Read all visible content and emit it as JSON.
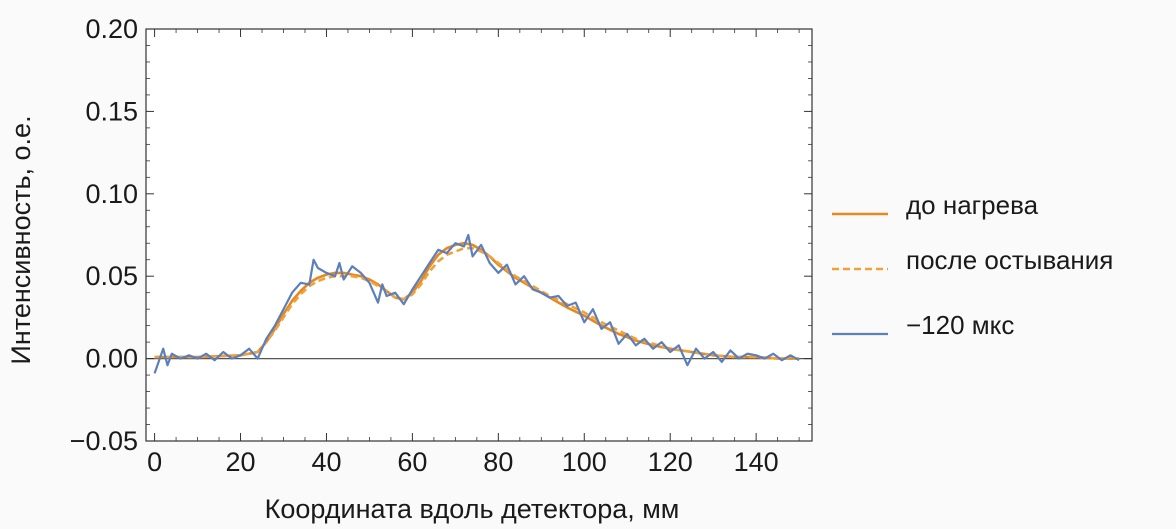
{
  "chart_data": {
    "type": "line",
    "title": "",
    "xlabel": "Координата вдоль детектора, мм",
    "ylabel": "Интенсивность, о.е.",
    "xlim": [
      -2,
      153
    ],
    "ylim": [
      -0.05,
      0.2
    ],
    "x_ticks": [
      0,
      20,
      40,
      60,
      80,
      100,
      120,
      140
    ],
    "x_tick_labels": [
      "0",
      "20",
      "40",
      "60",
      "80",
      "100",
      "120",
      "140"
    ],
    "y_ticks": [
      -0.05,
      0.0,
      0.05,
      0.1,
      0.15,
      0.2
    ],
    "y_tick_labels": [
      "−0.05",
      "0.00",
      "0.05",
      "0.10",
      "0.15",
      "0.20"
    ],
    "zero_line": true,
    "grid": false,
    "legend_position": "right",
    "series": [
      {
        "name": "до нагрева",
        "color": "#e8871e",
        "dash": "solid",
        "x": [
          0,
          10,
          20,
          24,
          26,
          28,
          30,
          32,
          34,
          36,
          38,
          40,
          42,
          44,
          46,
          48,
          50,
          52,
          54,
          56,
          58,
          60,
          62,
          64,
          66,
          68,
          70,
          72,
          74,
          76,
          78,
          80,
          84,
          88,
          92,
          96,
          100,
          104,
          108,
          112,
          116,
          120,
          125,
          130,
          135,
          140,
          145,
          150
        ],
        "y": [
          0.001,
          0.001,
          0.002,
          0.004,
          0.01,
          0.018,
          0.027,
          0.035,
          0.041,
          0.046,
          0.049,
          0.051,
          0.052,
          0.052,
          0.051,
          0.05,
          0.048,
          0.045,
          0.041,
          0.037,
          0.036,
          0.04,
          0.047,
          0.056,
          0.063,
          0.067,
          0.069,
          0.07,
          0.069,
          0.066,
          0.062,
          0.057,
          0.049,
          0.043,
          0.037,
          0.031,
          0.026,
          0.02,
          0.015,
          0.011,
          0.008,
          0.006,
          0.004,
          0.002,
          0.001,
          0.001,
          0.0,
          0.0
        ]
      },
      {
        "name": "после остывания",
        "color": "#f0a23a",
        "dash": "dashed",
        "x": [
          0,
          10,
          20,
          24,
          26,
          28,
          30,
          32,
          34,
          36,
          38,
          40,
          42,
          44,
          46,
          48,
          50,
          52,
          54,
          56,
          58,
          60,
          62,
          64,
          66,
          68,
          70,
          72,
          74,
          76,
          78,
          80,
          84,
          88,
          92,
          96,
          100,
          104,
          108,
          112,
          116,
          120,
          125,
          130,
          135,
          140,
          145,
          150
        ],
        "y": [
          0.001,
          0.001,
          0.002,
          0.004,
          0.01,
          0.017,
          0.025,
          0.033,
          0.039,
          0.044,
          0.047,
          0.049,
          0.05,
          0.05,
          0.05,
          0.049,
          0.047,
          0.044,
          0.041,
          0.037,
          0.036,
          0.039,
          0.045,
          0.053,
          0.059,
          0.063,
          0.065,
          0.067,
          0.067,
          0.065,
          0.062,
          0.058,
          0.05,
          0.044,
          0.038,
          0.033,
          0.028,
          0.022,
          0.017,
          0.012,
          0.009,
          0.006,
          0.004,
          0.002,
          0.001,
          0.001,
          0.0,
          0.0
        ]
      },
      {
        "name": "−120 мкс",
        "color": "#5b7fbd",
        "dash": "solid",
        "x": [
          0,
          2,
          3,
          4,
          6,
          8,
          10,
          12,
          14,
          16,
          18,
          20,
          22,
          24,
          26,
          28,
          30,
          32,
          34,
          36,
          37,
          38,
          40,
          42,
          43,
          44,
          46,
          48,
          50,
          52,
          53,
          54,
          56,
          58,
          60,
          62,
          64,
          66,
          68,
          70,
          72,
          73,
          74,
          76,
          78,
          80,
          82,
          84,
          86,
          88,
          90,
          92,
          94,
          96,
          98,
          100,
          102,
          104,
          106,
          108,
          110,
          112,
          114,
          116,
          118,
          120,
          122,
          124,
          126,
          128,
          130,
          132,
          134,
          136,
          138,
          140,
          142,
          144,
          146,
          148,
          150
        ],
        "y": [
          -0.009,
          0.006,
          -0.004,
          0.003,
          0.0,
          0.002,
          0.0,
          0.003,
          -0.001,
          0.004,
          0.0,
          0.002,
          0.006,
          0.0,
          0.012,
          0.02,
          0.03,
          0.04,
          0.046,
          0.045,
          0.06,
          0.055,
          0.052,
          0.05,
          0.058,
          0.048,
          0.056,
          0.052,
          0.046,
          0.034,
          0.045,
          0.038,
          0.04,
          0.033,
          0.042,
          0.05,
          0.058,
          0.066,
          0.064,
          0.07,
          0.068,
          0.075,
          0.062,
          0.069,
          0.058,
          0.052,
          0.057,
          0.045,
          0.05,
          0.042,
          0.04,
          0.037,
          0.038,
          0.032,
          0.034,
          0.022,
          0.03,
          0.018,
          0.022,
          0.009,
          0.015,
          0.008,
          0.012,
          0.006,
          0.01,
          0.004,
          0.008,
          -0.004,
          0.006,
          0.0,
          0.004,
          -0.002,
          0.005,
          0.0,
          0.003,
          0.002,
          0.0,
          0.003,
          -0.001,
          0.002,
          -0.001
        ]
      }
    ]
  }
}
